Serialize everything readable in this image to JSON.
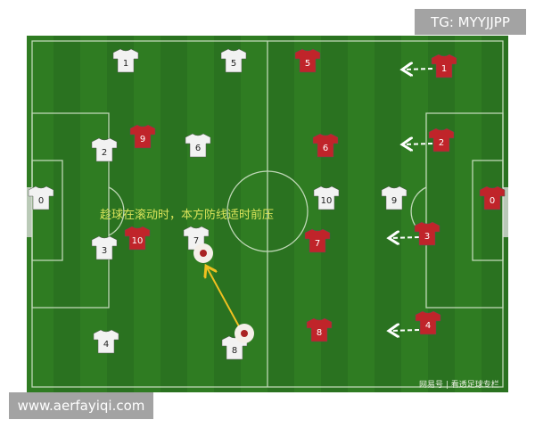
{
  "caption": "趁球在滚动时，本方防线适时前压",
  "watermark": "网易号 | 看透足球专栏",
  "tg_label": "TG: MYYJJPP",
  "site_label": "www.aerfayiqi.com",
  "colors": {
    "pitch": "#2f7a22",
    "white_team": "#f2f2f2",
    "red_team": "#c0242a",
    "caption": "#d9e35a",
    "pass_arrow": "#f0c020"
  },
  "white_team": [
    {
      "number": "1"
    },
    {
      "number": "5"
    },
    {
      "number": "2"
    },
    {
      "number": "6"
    },
    {
      "number": "0"
    },
    {
      "number": "3"
    },
    {
      "number": "7"
    },
    {
      "number": "4"
    },
    {
      "number": "8"
    },
    {
      "number": "10"
    },
    {
      "number": "9"
    }
  ],
  "red_team": [
    {
      "number": "5"
    },
    {
      "number": "1"
    },
    {
      "number": "9"
    },
    {
      "number": "6"
    },
    {
      "number": "2"
    },
    {
      "number": "0"
    },
    {
      "number": "10"
    },
    {
      "number": "7"
    },
    {
      "number": "3"
    },
    {
      "number": "8"
    },
    {
      "number": "4"
    }
  ]
}
